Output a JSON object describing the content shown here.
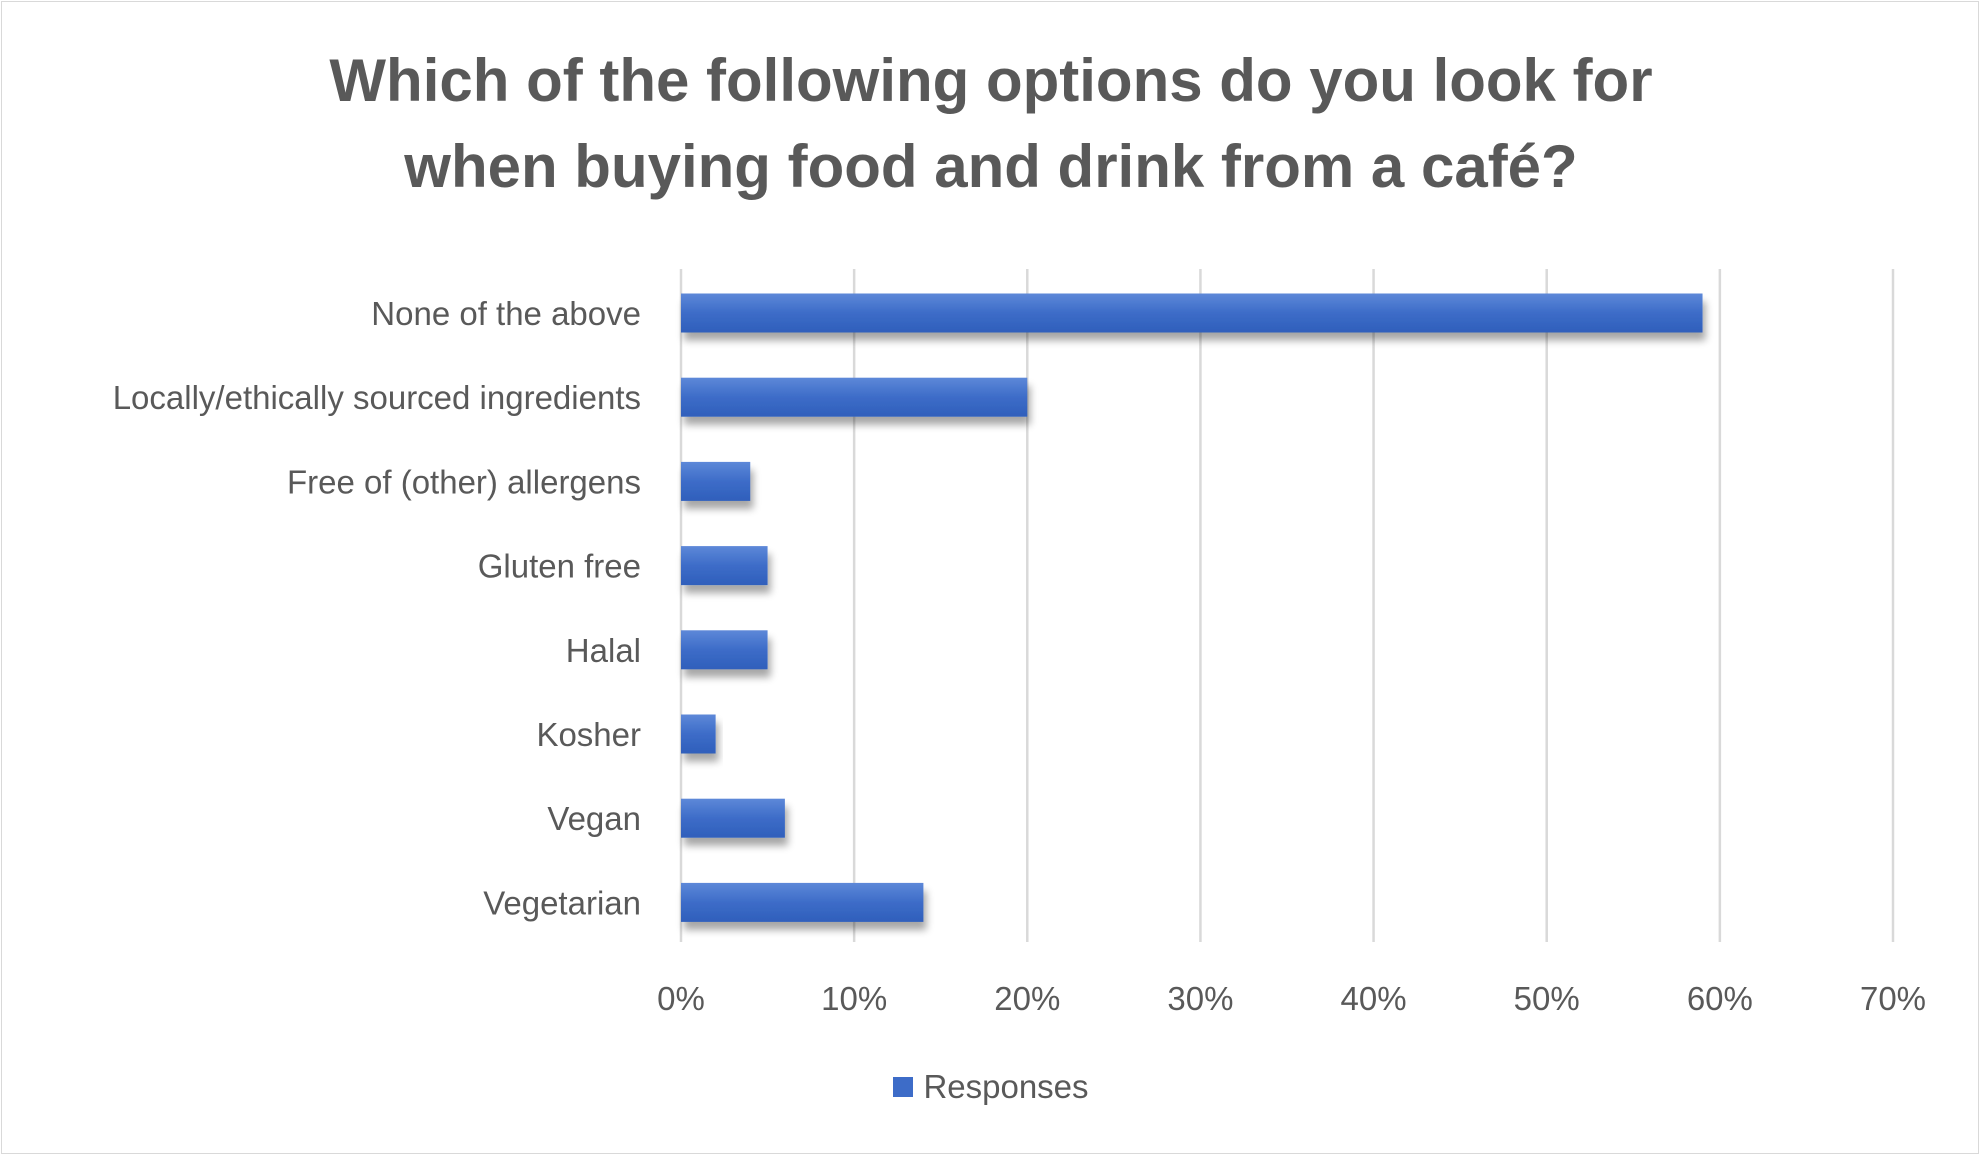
{
  "chart_data": {
    "type": "bar",
    "orientation": "horizontal",
    "title": "Which of the following options do you look for when buying food and drink from a café?",
    "title_lines": [
      "Which of the following options do you look for",
      "when buying food and drink from a café?"
    ],
    "categories": [
      "None of the above",
      "Locally/ethically sourced ingredients",
      "Free of (other) allergens",
      "Gluten free",
      "Halal",
      "Kosher",
      "Vegan",
      "Vegetarian"
    ],
    "series": [
      {
        "name": "Responses",
        "values": [
          59,
          20,
          4,
          5,
          5,
          2,
          6,
          14
        ],
        "color": "#3d6cc8"
      }
    ],
    "unit": "%",
    "xlim": [
      0,
      70
    ],
    "xticks": [
      "0%",
      "10%",
      "20%",
      "30%",
      "40%",
      "50%",
      "60%",
      "70%"
    ],
    "grid": true,
    "legend": "bottom",
    "xlabel": "",
    "ylabel": ""
  }
}
